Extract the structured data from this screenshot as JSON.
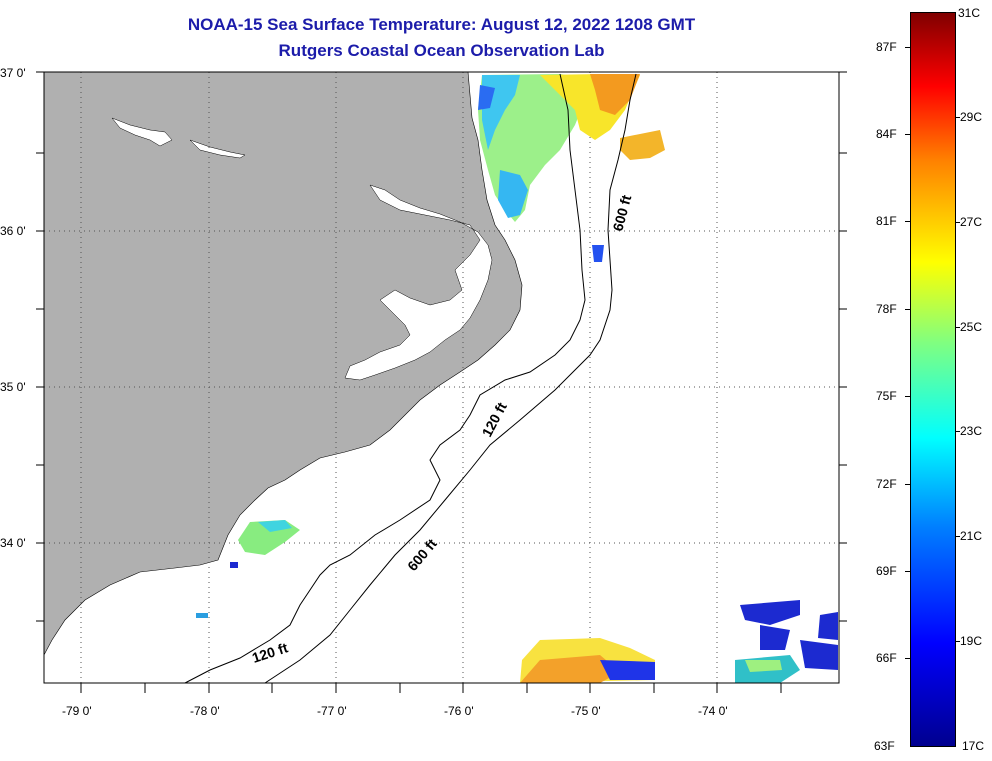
{
  "title": {
    "line1": "NOAA-15 Sea Surface Temperature:  August 12, 2022 1208 GMT",
    "line2": "Rutgers Coastal Ocean Observation Lab"
  },
  "map": {
    "latitude_labels": [
      "37 0'",
      "36 0'",
      "35 0'",
      "34 0'"
    ],
    "longitude_labels": [
      "-79 0'",
      "-78 0'",
      "-77 0'",
      "-76 0'",
      "-75 0'",
      "-74 0'"
    ],
    "contour_labels": [
      "600 ft",
      "120 ft",
      "600 ft",
      "120 ft"
    ],
    "land_color": "#b0b0b0",
    "water_color": "#ffffff"
  },
  "colorbar": {
    "fahrenheit_labels": [
      "87F",
      "84F",
      "81F",
      "78F",
      "75F",
      "72F",
      "69F",
      "66F"
    ],
    "fahrenheit_min": "63F",
    "celsius_labels": [
      "29C",
      "27C",
      "25C",
      "23C",
      "21C",
      "19C"
    ],
    "celsius_max": "31C",
    "celsius_min": "17C",
    "colors": [
      "#00008f",
      "#0000ff",
      "#0080ff",
      "#00ffff",
      "#80ff80",
      "#ffff00",
      "#ff8000",
      "#ff0000",
      "#800000"
    ]
  }
}
